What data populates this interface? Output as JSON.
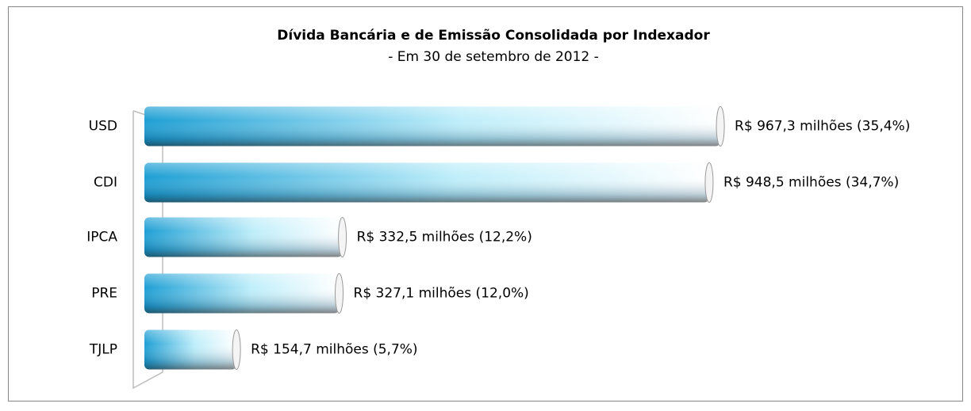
{
  "chart_data": {
    "type": "bar",
    "orientation": "horizontal",
    "title": "Dívida Bancária e de Emissão Consolidada por Indexador",
    "subtitle": "- Em 30 de setembro de 2012 -",
    "categories": [
      "USD",
      "CDI",
      "IPCA",
      "PRE",
      "TJLP"
    ],
    "values": [
      967.3,
      948.5,
      332.5,
      327.1,
      154.7
    ],
    "value_labels": [
      "R$ 967,3 milhões (35,4%)",
      "R$ 948,5 milhões (34,7%)",
      "R$ 332,5 milhões (12,2%)",
      "R$ 327,1 milhões (12,0%)",
      "R$ 154,7 milhões (5,7%)"
    ],
    "color": "#1e9fd4"
  }
}
